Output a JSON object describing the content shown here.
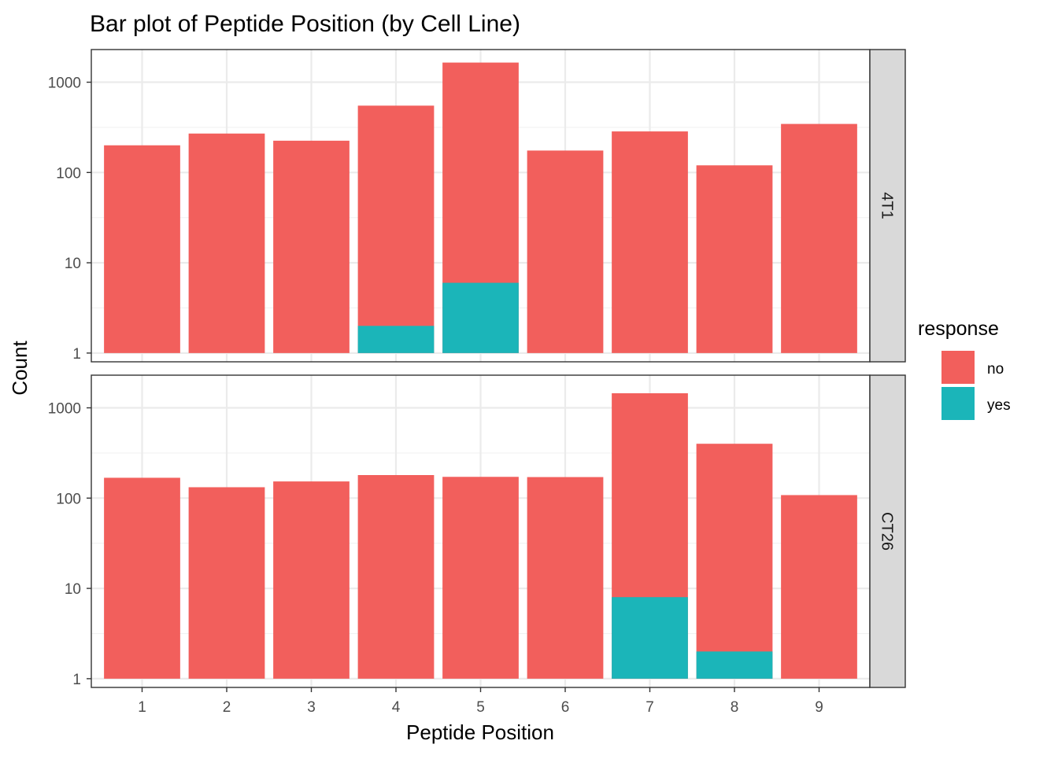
{
  "chart_data": {
    "type": "bar",
    "stacked": true,
    "title": "Bar plot of Peptide Position (by Cell Line)",
    "xlabel": "Peptide Position",
    "ylabel": "Count",
    "y_scale": "log10",
    "ylim": [
      1,
      2000
    ],
    "y_ticks": [
      1,
      10,
      100,
      1000
    ],
    "categories": [
      "1",
      "2",
      "3",
      "4",
      "5",
      "6",
      "7",
      "8",
      "9"
    ],
    "legend": {
      "title": "response",
      "position": "right",
      "entries": [
        {
          "name": "no",
          "color": "#F25F5C"
        },
        {
          "name": "yes",
          "color": "#1BB5B9"
        }
      ]
    },
    "grid": true,
    "facets": [
      {
        "label": "4T1",
        "totals": [
          200,
          270,
          225,
          550,
          1650,
          175,
          285,
          120,
          345
        ],
        "series": [
          {
            "name": "yes",
            "values": [
              0,
              0,
              0,
              2,
              6,
              0,
              0,
              0,
              0
            ]
          }
        ]
      },
      {
        "label": "CT26",
        "totals": [
          168,
          132,
          153,
          180,
          172,
          171,
          1450,
          400,
          108
        ],
        "series": [
          {
            "name": "yes",
            "values": [
              0,
              0,
              0,
              0,
              0,
              0,
              8,
              2,
              0
            ]
          }
        ]
      }
    ]
  }
}
